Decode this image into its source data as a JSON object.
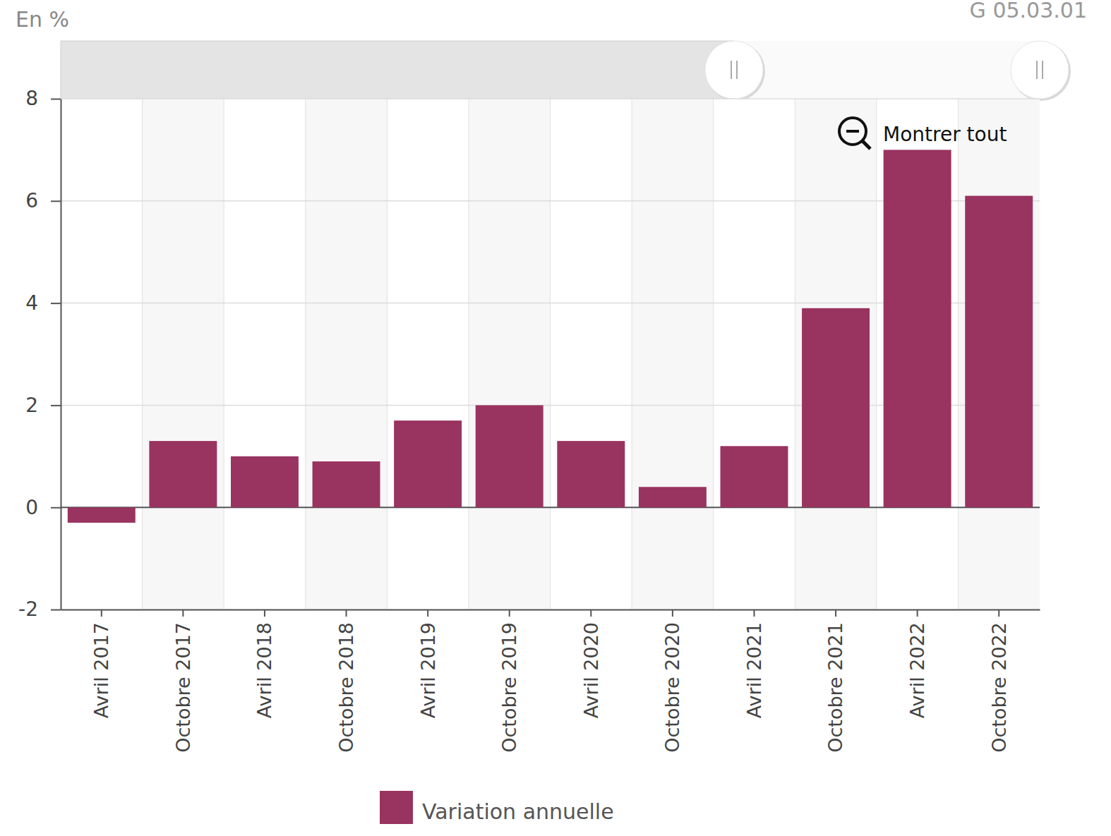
{
  "chart_data": {
    "type": "bar",
    "y_label": "En %",
    "annotations": [
      "G 05.03.01",
      "Montrer tout"
    ],
    "categories": [
      "Avril 2017",
      "Octobre 2017",
      "Avril 2018",
      "Octobre 2018",
      "Avril 2019",
      "Octobre 2019",
      "Avril 2020",
      "Octobre 2020",
      "Avril 2021",
      "Octobre 2021",
      "Avril 2022",
      "Octobre 2022"
    ],
    "series": [
      {
        "name": "Variation annuelle",
        "color": "#993360",
        "values": [
          -0.3,
          1.3,
          1.0,
          0.9,
          1.7,
          2.0,
          1.3,
          0.4,
          1.2,
          3.9,
          7.0,
          6.1
        ]
      }
    ],
    "ylim": [
      -2,
      8
    ],
    "yticks": [
      -2,
      0,
      2,
      4,
      6,
      8
    ],
    "grid": true,
    "legend": "bottom"
  }
}
